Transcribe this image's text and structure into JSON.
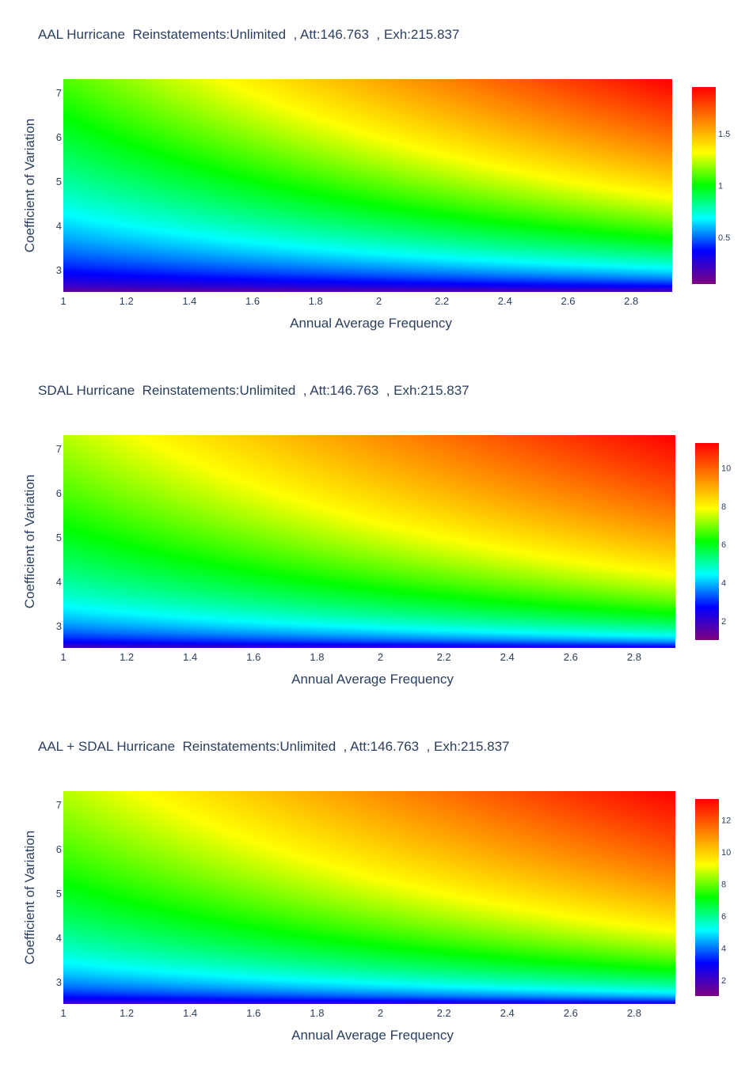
{
  "chart_data": [
    {
      "type": "heatmap",
      "title": "AAL Hurricane  Reinstatements:Unlimited  , Att:146.763  , Exh:215.837",
      "xlabel": "Annual Average Frequency",
      "ylabel": "Coefficient of Variation",
      "xlim": [
        1,
        2.93
      ],
      "ylim": [
        2.5,
        7.3
      ],
      "x_ticks": [
        "1",
        "1.2",
        "1.4",
        "1.6",
        "1.8",
        "2",
        "2.2",
        "2.4",
        "2.6",
        "2.8"
      ],
      "y_ticks": [
        "3",
        "4",
        "5",
        "6",
        "7"
      ],
      "colorbar": {
        "range": [
          0.05,
          1.95
        ],
        "ticks": [
          "0.5",
          "1",
          "1.5"
        ],
        "tick_values": [
          0.5,
          1,
          1.5
        ]
      },
      "z_range": [
        0.05,
        1.95
      ],
      "colorscale": [
        "#800080",
        "#0000ff",
        "#00ffff",
        "#00ff00",
        "#ffff00",
        "#ff8000",
        "#ff0000"
      ]
    },
    {
      "type": "heatmap",
      "title": "SDAL Hurricane  Reinstatements:Unlimited  , Att:146.763  , Exh:215.837",
      "xlabel": "Annual Average Frequency",
      "ylabel": "Coefficient of Variation",
      "xlim": [
        1,
        2.93
      ],
      "ylim": [
        2.5,
        7.3
      ],
      "x_ticks": [
        "1",
        "1.2",
        "1.4",
        "1.6",
        "1.8",
        "2",
        "2.2",
        "2.4",
        "2.6",
        "2.8"
      ],
      "y_ticks": [
        "3",
        "4",
        "5",
        "6",
        "7"
      ],
      "colorbar": {
        "range": [
          1.0,
          11.3
        ],
        "ticks": [
          "2",
          "4",
          "6",
          "8",
          "10"
        ],
        "tick_values": [
          2,
          4,
          6,
          8,
          10
        ]
      },
      "z_range": [
        1.0,
        11.3
      ],
      "colorscale": [
        "#800080",
        "#0000ff",
        "#00ffff",
        "#00ff00",
        "#ffff00",
        "#ff8000",
        "#ff0000"
      ]
    },
    {
      "type": "heatmap",
      "title": "AAL + SDAL Hurricane  Reinstatements:Unlimited  , Att:146.763  , Exh:215.837",
      "xlabel": "Annual Average Frequency",
      "ylabel": "Coefficient of Variation",
      "xlim": [
        1,
        2.93
      ],
      "ylim": [
        2.5,
        7.3
      ],
      "x_ticks": [
        "1",
        "1.2",
        "1.4",
        "1.6",
        "1.8",
        "2",
        "2.2",
        "2.4",
        "2.6",
        "2.8"
      ],
      "y_ticks": [
        "3",
        "4",
        "5",
        "6",
        "7"
      ],
      "colorbar": {
        "range": [
          1.0,
          13.3
        ],
        "ticks": [
          "2",
          "4",
          "6",
          "8",
          "10",
          "12"
        ],
        "tick_values": [
          2,
          4,
          6,
          8,
          10,
          12
        ]
      },
      "z_range": [
        1.0,
        13.3
      ],
      "colorscale": [
        "#800080",
        "#0000ff",
        "#00ffff",
        "#00ff00",
        "#ffff00",
        "#ff8000",
        "#ff0000"
      ]
    }
  ]
}
